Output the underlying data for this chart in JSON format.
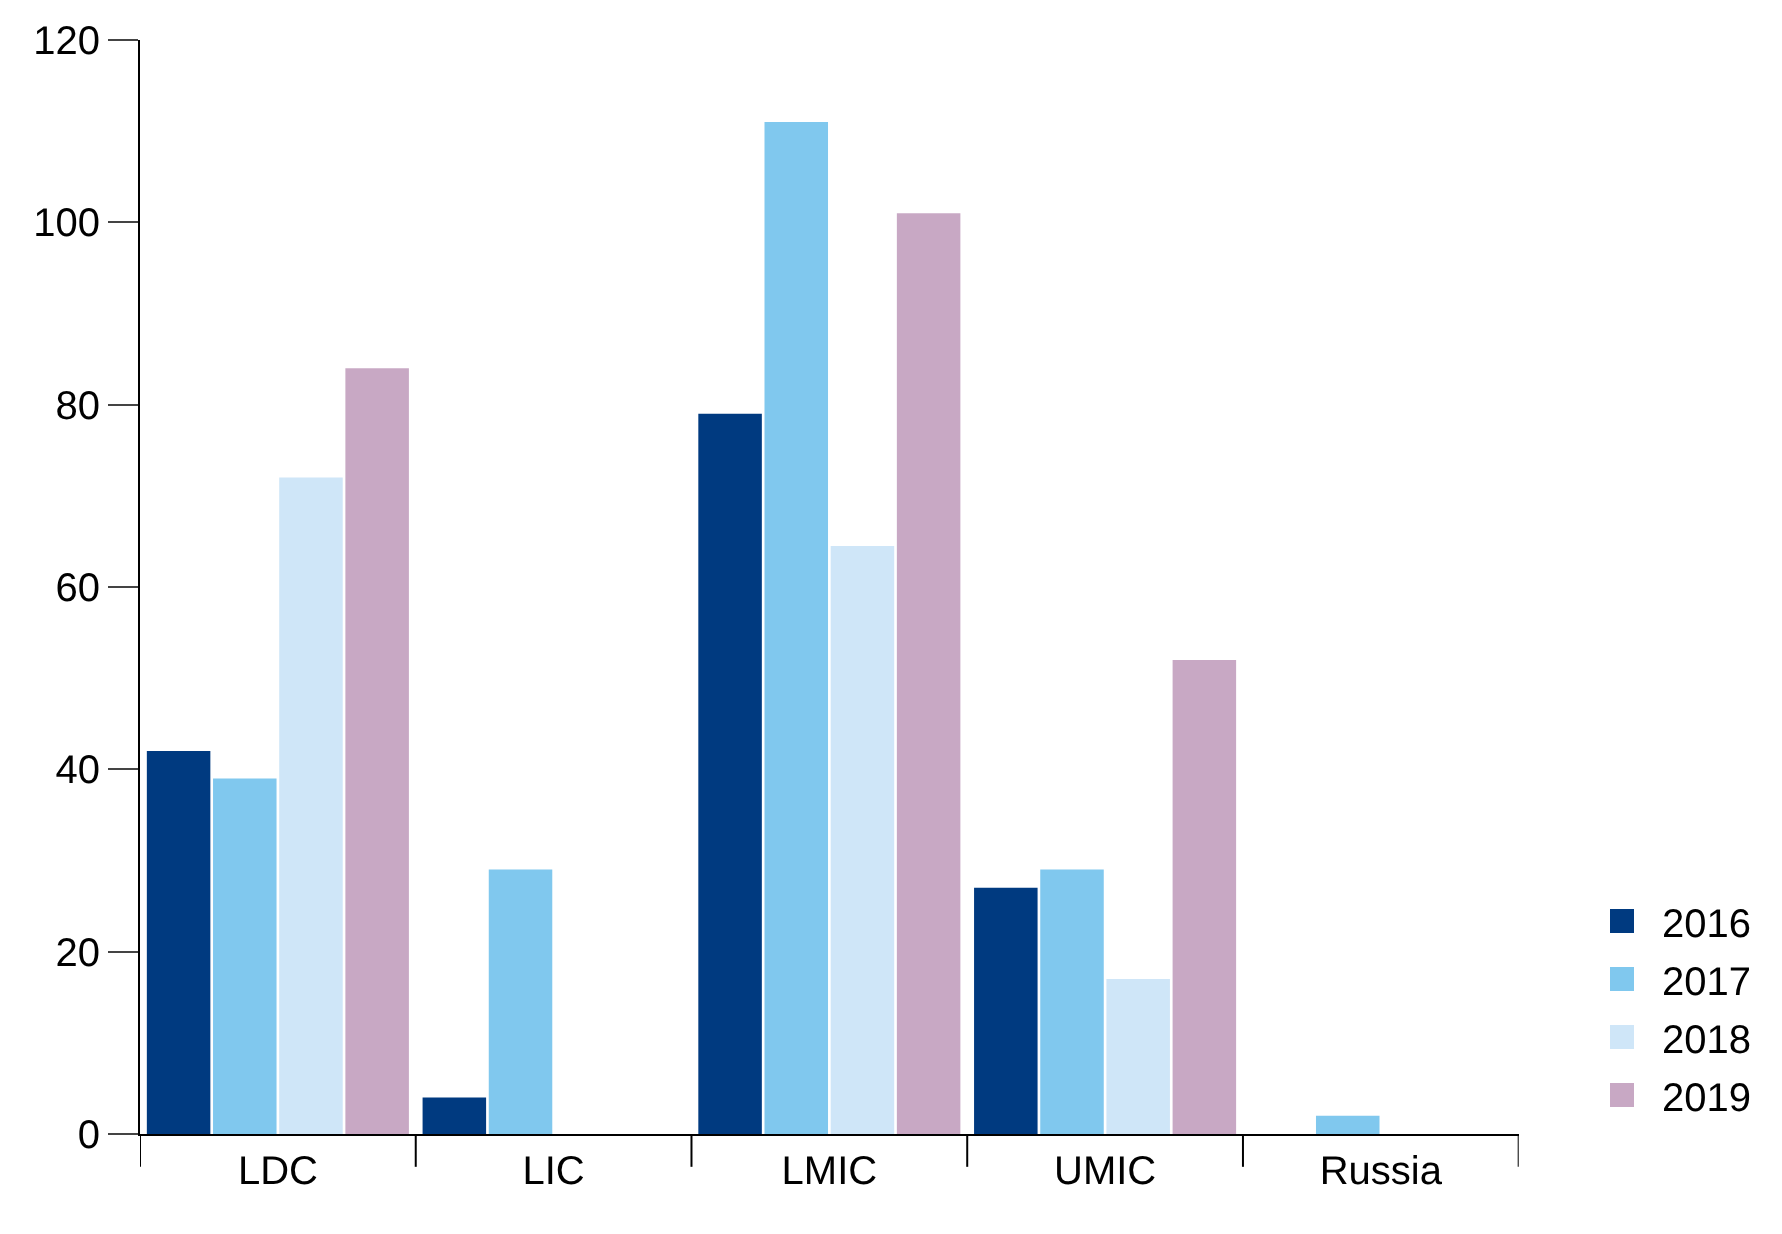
{
  "chart_data": {
    "type": "bar",
    "categories": [
      "LDC",
      "LIC",
      "LMIC",
      "UMIC",
      "Russia"
    ],
    "series": [
      {
        "name": "2016",
        "color": "#003a80",
        "values": [
          42,
          4,
          79,
          27,
          null
        ]
      },
      {
        "name": "2017",
        "color": "#80c8ee",
        "values": [
          39,
          29,
          111,
          29,
          2
        ]
      },
      {
        "name": "2018",
        "color": "#cfe6f8",
        "values": [
          72,
          null,
          64.5,
          17,
          null
        ]
      },
      {
        "name": "2019",
        "color": "#c8a8c4",
        "values": [
          84,
          null,
          101,
          52,
          null
        ]
      }
    ],
    "ylim": [
      0,
      120
    ],
    "yticks": [
      0,
      20,
      40,
      60,
      80,
      100,
      120
    ],
    "grid": false,
    "legend": "right"
  }
}
